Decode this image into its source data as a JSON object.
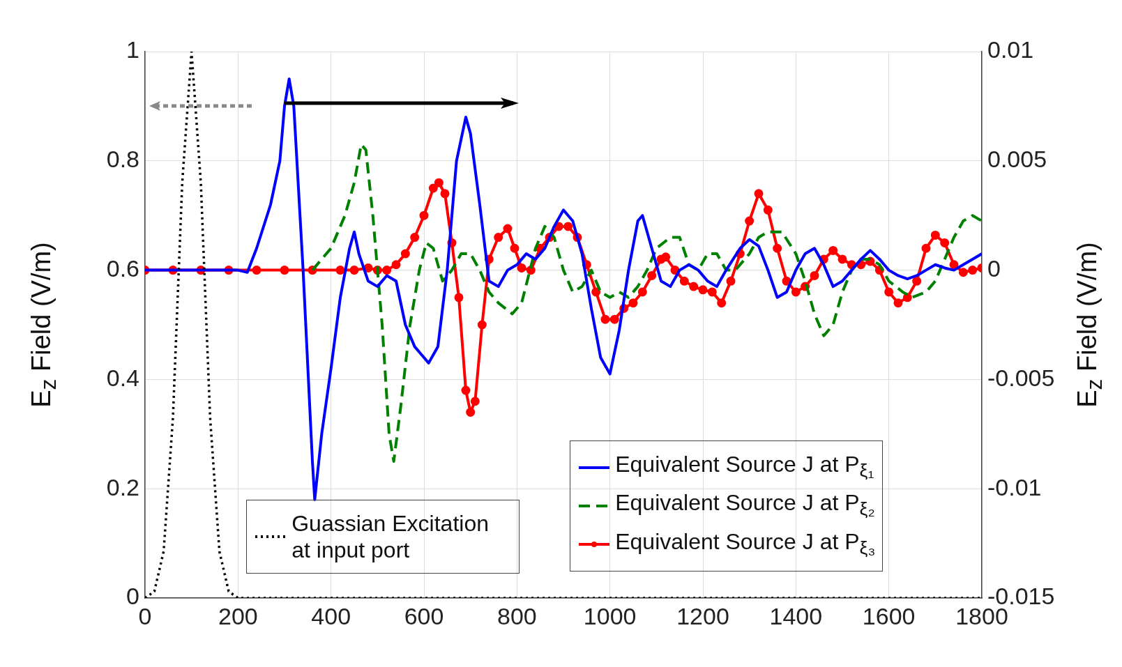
{
  "chart_data": {
    "type": "line",
    "xlim": [
      0,
      1800
    ],
    "xticks": [
      0,
      200,
      400,
      600,
      800,
      1000,
      1200,
      1400,
      1600,
      1800
    ],
    "ylim": [
      0,
      1
    ],
    "yticks": [
      0,
      0.2,
      0.4,
      0.6,
      0.8,
      1
    ],
    "y2lim": [
      -0.015,
      0.01
    ],
    "y2ticks": [
      -0.015,
      -0.01,
      -0.005,
      0,
      0.005,
      0.01
    ],
    "ylabel": "E$_{z}$ Field (V/m)",
    "y2label": "E$_{z}$ Field (V/m)",
    "grid": true,
    "legend": "bottom right",
    "series": [
      {
        "name": "Guassian Excitation at input port",
        "color": "#000000",
        "line_style": "dotted",
        "marker": "none",
        "x": [
          0,
          20,
          40,
          60,
          80,
          100,
          120,
          140,
          160,
          180,
          200,
          1800
        ],
        "values": [
          0,
          0.012,
          0.085,
          0.33,
          0.76,
          1,
          0.76,
          0.33,
          0.085,
          0.012,
          0,
          0
        ]
      },
      {
        "name": "Equivalent Source J at P$_{ξ₁}$",
        "color": "#0000ff",
        "line_style": "solid",
        "marker": "none",
        "axis": "y2",
        "x": [
          0,
          200,
          220,
          240,
          270,
          290,
          300,
          310,
          320,
          340,
          360,
          365,
          380,
          400,
          420,
          440,
          450,
          460,
          480,
          500,
          520,
          540,
          560,
          580,
          600,
          610,
          630,
          650,
          670,
          690,
          700,
          720,
          740,
          760,
          780,
          800,
          820,
          840,
          860,
          880,
          900,
          920,
          940,
          960,
          980,
          1000,
          1020,
          1040,
          1060,
          1070,
          1090,
          1110,
          1130,
          1150,
          1170,
          1190,
          1210,
          1230,
          1250,
          1280,
          1300,
          1320,
          1340,
          1360,
          1380,
          1400,
          1420,
          1440,
          1460,
          1480,
          1500,
          1520,
          1540,
          1560,
          1580,
          1600,
          1620,
          1640,
          1660,
          1680,
          1700,
          1720,
          1740,
          1760,
          1780,
          1800
        ],
        "values": [
          0,
          0,
          -0.0001,
          0.001,
          0.003,
          0.005,
          0.0075,
          0.00875,
          0.0075,
          0,
          -0.00875,
          -0.0105,
          -0.0075,
          -0.0045,
          -0.00125,
          0.001,
          0.00175,
          0.00075,
          -0.0005,
          -0.00075,
          -0.00025,
          -0.0005,
          -0.0025,
          -0.0035,
          -0.004,
          -0.00425,
          -0.0035,
          0,
          0.005,
          0.007,
          0.00625,
          0.003,
          -0.0005,
          -0.00075,
          0,
          0.00025,
          0.00075,
          0.0005,
          0.001,
          0.002,
          0.00275,
          0.00225,
          0.00075,
          -0.00175,
          -0.004,
          -0.00475,
          -0.00275,
          0,
          0.00225,
          0.0025,
          0.001,
          -0.0005,
          -0.00075,
          0,
          0.00025,
          0,
          -0.0005,
          -0.00075,
          0,
          0.001,
          0.0014,
          0.0011,
          0,
          -0.00125,
          -0.001,
          0,
          0.00075,
          0.001,
          0.00025,
          -0.00075,
          -0.0005,
          0,
          0.0005,
          0.0009,
          0.0005,
          0,
          -0.00025,
          -0.0004,
          -0.00025,
          0,
          0.00025,
          0.0001,
          0,
          0.00025,
          0.0005,
          0.00075
        ]
      },
      {
        "name": "Equivalent Source J at P$_{ξ₂}$",
        "color": "#008000",
        "line_style": "dashed",
        "marker": "none",
        "axis": "y2",
        "x": [
          360,
          400,
          430,
          450,
          465,
          475,
          490,
          510,
          525,
          535,
          550,
          570,
          590,
          605,
          620,
          640,
          660,
          680,
          700,
          720,
          740,
          760,
          790,
          810,
          840,
          860,
          880,
          900,
          920,
          940,
          960,
          980,
          1000,
          1020,
          1040,
          1060,
          1080,
          1100,
          1130,
          1150,
          1170,
          1190,
          1210,
          1230,
          1250,
          1270,
          1300,
          1320,
          1340,
          1370,
          1400,
          1420,
          1440,
          1460,
          1480,
          1500,
          1520,
          1540,
          1560,
          1580,
          1600,
          1630,
          1650,
          1680,
          1700,
          1720,
          1740,
          1760,
          1780,
          1800
        ],
        "values": [
          0,
          0.001,
          0.0025,
          0.004,
          0.00575,
          0.0055,
          0.0025,
          -0.0025,
          -0.0075,
          -0.00875,
          -0.00625,
          -0.0025,
          0,
          0.00125,
          0.001,
          -0.0005,
          0,
          0.00075,
          0.00075,
          0,
          -0.001,
          -0.0015,
          -0.002,
          -0.0015,
          0.001,
          0.002,
          0.0015,
          0,
          -0.001,
          -0.00075,
          0,
          -0.001,
          -0.00125,
          -0.001,
          -0.00125,
          -0.00075,
          0,
          0.001,
          0.0015,
          0.0015,
          0.00025,
          0,
          0.00075,
          0.00075,
          0,
          0,
          0.00075,
          0.0015,
          0.00175,
          0.00175,
          0.00075,
          -0.0005,
          -0.002,
          -0.003,
          -0.0025,
          -0.001,
          0,
          0.0005,
          0.0005,
          0.00025,
          -0.0005,
          -0.001,
          -0.00125,
          -0.001,
          -0.0005,
          0.0005,
          0.0015,
          0.00225,
          0.0025,
          0.00225
        ]
      },
      {
        "name": "Equivalent Source J at P$_{ξ₃}$",
        "color": "#ff0000",
        "line_style": "solid",
        "marker": "circle",
        "axis": "y2",
        "x": [
          0,
          60,
          120,
          180,
          240,
          300,
          360,
          420,
          450,
          480,
          500,
          520,
          540,
          560,
          580,
          600,
          620,
          632,
          645,
          660,
          675,
          690,
          700,
          710,
          725,
          740,
          760,
          780,
          795,
          810,
          830,
          850,
          870,
          890,
          910,
          930,
          950,
          970,
          990,
          1010,
          1030,
          1050,
          1070,
          1090,
          1110,
          1120,
          1140,
          1160,
          1180,
          1200,
          1220,
          1240,
          1260,
          1280,
          1300,
          1320,
          1340,
          1360,
          1380,
          1400,
          1420,
          1440,
          1460,
          1480,
          1500,
          1520,
          1540,
          1560,
          1580,
          1600,
          1620,
          1640,
          1660,
          1680,
          1700,
          1720,
          1740,
          1760,
          1780,
          1800
        ],
        "values": [
          0,
          0,
          0,
          0,
          0,
          0,
          0,
          0,
          0,
          0.0001,
          0,
          0,
          0.00025,
          0.00075,
          0.0015,
          0.0025,
          0.00375,
          0.004,
          0.0035,
          0.00125,
          -0.00125,
          -0.0055,
          -0.0065,
          -0.006,
          -0.0025,
          0.0005,
          0.0015,
          0.0019,
          0.001,
          0.0001,
          0,
          0.001,
          0.0015,
          0.002,
          0.002,
          0.0015,
          0.00025,
          -0.001,
          -0.00225,
          -0.00225,
          -0.00175,
          -0.0015,
          -0.001,
          -0.00025,
          0.0005,
          0.0006,
          0,
          -0.0005,
          -0.00075,
          -0.0009,
          -0.001,
          -0.0015,
          -0.0005,
          0.00075,
          0.00225,
          0.0035,
          0.00275,
          0.001,
          -0.0005,
          -0.001,
          -0.00075,
          -0.00025,
          0.0005,
          0.0009,
          0.0005,
          0.00025,
          0.00025,
          0.0004,
          0,
          -0.001,
          -0.0015,
          -0.00125,
          -0.0005,
          0.001,
          0.0016,
          0.00125,
          0.00025,
          -0.0001,
          0,
          0.0001
        ]
      }
    ]
  }
}
